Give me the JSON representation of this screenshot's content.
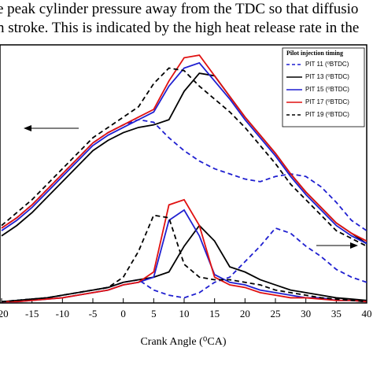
{
  "text_lines": [
    "e peak cylinder pressure away from the TDC so that diffusio",
    "n stroke. This is indicated by the high heat release rate in the"
  ],
  "chart_data": {
    "type": "line",
    "x_label": "Crank Angle (⁰CA)",
    "legend_title": "Pilot injection timing",
    "xlim": [
      -20,
      40
    ],
    "xticks": [
      -20,
      -15,
      -10,
      -5,
      0,
      5,
      10,
      15,
      20,
      25,
      30,
      35,
      40
    ],
    "ylim": [
      0,
      100
    ],
    "x": [
      -20,
      -17.5,
      -15,
      -12.5,
      -10,
      -7.5,
      -5,
      -2.5,
      0,
      2.5,
      5,
      7.5,
      10,
      12.5,
      15,
      17.5,
      20,
      22.5,
      25,
      27.5,
      30,
      32.5,
      35,
      37.5,
      40
    ],
    "series": [
      {
        "name": "PIT 11 (⁰BTDC)",
        "color": "#1f1fd0",
        "dashed": true,
        "pressure": [
          29,
          33,
          38,
          44,
          50,
          56,
          62,
          66,
          69,
          71,
          70,
          64,
          59,
          55,
          52,
          50,
          48,
          47,
          49,
          50,
          49,
          45,
          39,
          32,
          28
        ],
        "heat_release": [
          0.5,
          1,
          1.5,
          2,
          3,
          4,
          5,
          6,
          8,
          9,
          5,
          3,
          2,
          4,
          8,
          10,
          16,
          22,
          29,
          27,
          22,
          18,
          13,
          10,
          8
        ]
      },
      {
        "name": "PIT 13 (⁰BTDC)",
        "color": "#000000",
        "dashed": false,
        "pressure": [
          26,
          30,
          35,
          41,
          47,
          53,
          59,
          63,
          66,
          68,
          69,
          71,
          82,
          89,
          88,
          80,
          72,
          65,
          58,
          50,
          43,
          37,
          31,
          27,
          23
        ],
        "heat_release": [
          0.5,
          1,
          1.5,
          2,
          3,
          4,
          5,
          6,
          8,
          9,
          10,
          12,
          22,
          30,
          24,
          14,
          12,
          9,
          7,
          5,
          4,
          3,
          2,
          1.5,
          1
        ]
      },
      {
        "name": "PIT 15 (⁰BTDC)",
        "color": "#1f1fd0",
        "dashed": false,
        "pressure": [
          28,
          32,
          37,
          43,
          49,
          55,
          61,
          65,
          68,
          71,
          74,
          84,
          91,
          93,
          86,
          79,
          71,
          64,
          57,
          49,
          42,
          36,
          30,
          26,
          23
        ],
        "heat_release": [
          0.5,
          0.5,
          1,
          1.5,
          2,
          3,
          4,
          5,
          7,
          8,
          10,
          32,
          36,
          26,
          11,
          8,
          7,
          5,
          4,
          3,
          2,
          2,
          1,
          1,
          0.5
        ]
      },
      {
        "name": "PIT 17 (⁰BTDC)",
        "color": "#e01010",
        "dashed": false,
        "pressure": [
          29,
          33,
          38,
          44,
          50,
          56,
          62,
          66,
          69,
          72,
          75,
          86,
          95,
          96,
          88,
          80,
          72,
          65,
          58,
          50,
          43,
          37,
          31,
          27,
          24
        ],
        "heat_release": [
          0.5,
          0.5,
          1,
          1.5,
          2,
          3,
          4,
          5,
          7,
          8,
          12,
          38,
          40,
          30,
          10,
          7,
          6,
          4,
          3,
          2,
          2,
          1.5,
          1,
          1,
          0.5
        ]
      },
      {
        "name": "PIT 19 (⁰BTDC)",
        "color": "#000000",
        "dashed": true,
        "pressure": [
          30,
          35,
          40,
          46,
          52,
          58,
          64,
          68,
          72,
          76,
          85,
          91,
          90,
          84,
          79,
          74,
          68,
          61,
          54,
          46,
          40,
          34,
          28,
          25,
          22
        ],
        "heat_release": [
          0.5,
          1,
          1.5,
          2,
          3,
          4,
          5,
          6,
          10,
          20,
          34,
          33,
          15,
          10,
          9,
          9,
          8,
          7,
          5,
          4,
          3,
          2,
          1.5,
          1,
          0.5
        ]
      }
    ]
  }
}
